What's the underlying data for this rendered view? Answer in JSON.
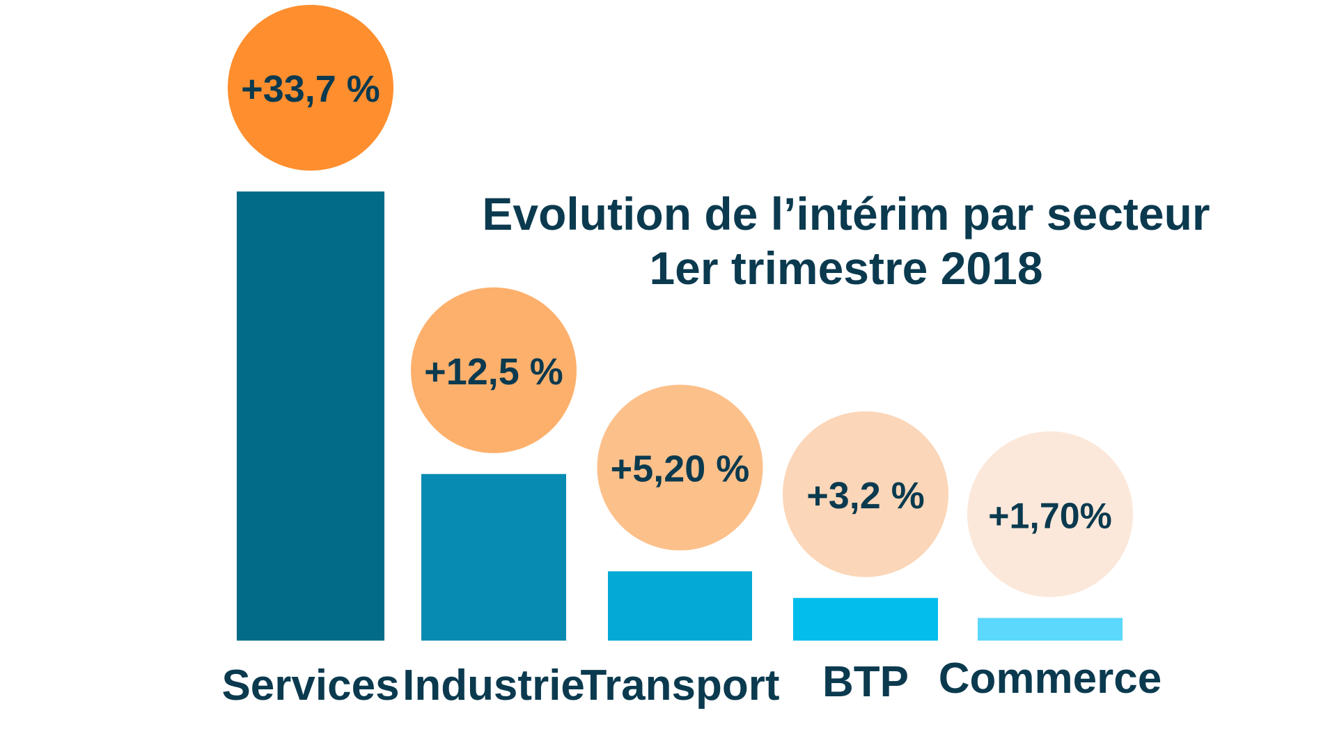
{
  "chart_data": {
    "type": "bar",
    "title": "Evolution de l’intérim par secteur",
    "subtitle": "1er trimestre 2018",
    "categories": [
      "Services",
      "Industrie",
      "Transport",
      "BTP",
      "Commerce"
    ],
    "values": [
      33.7,
      12.5,
      5.2,
      3.2,
      1.7
    ],
    "value_labels": [
      "+33,7 %",
      "+12,5 %",
      "+5,20 %",
      "+3,2 %",
      "+1,70%"
    ],
    "unit": "%",
    "ylim": [
      0,
      33.7
    ],
    "grid": false,
    "legend": "none"
  },
  "colors": {
    "text": "#0b3a4f",
    "bars": [
      "#016b88",
      "#088bb3",
      "#05a9d6",
      "#03bdec",
      "#5bd8fb"
    ],
    "bubbles": [
      "#fe8e2e",
      "#fdb06c",
      "#fcc08a",
      "#fbd6b8",
      "#fce8da"
    ]
  }
}
